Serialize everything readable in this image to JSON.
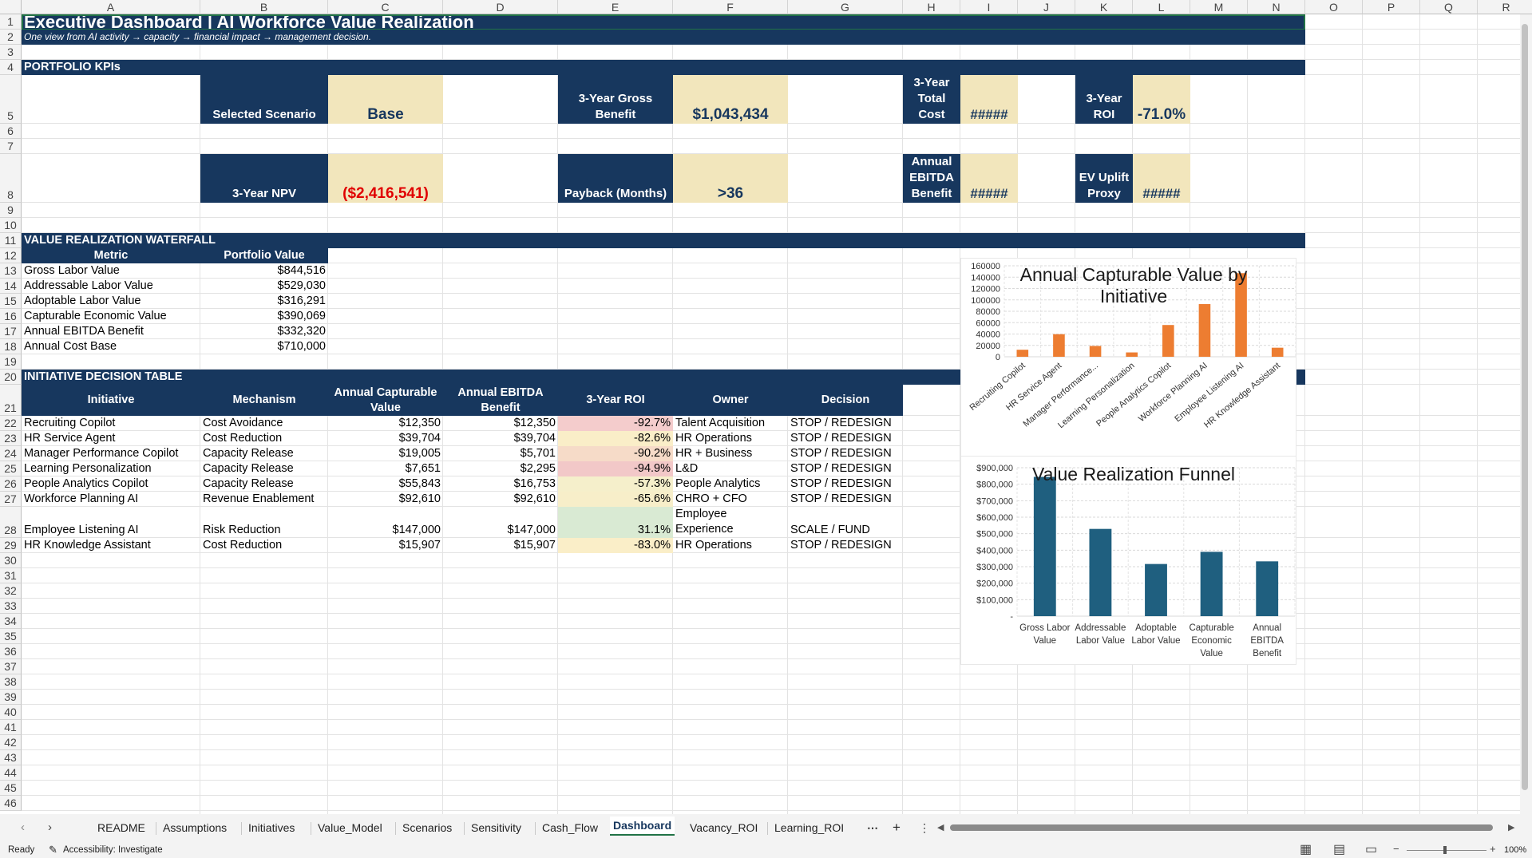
{
  "columns": [
    "A",
    "B",
    "C",
    "D",
    "E",
    "F",
    "G",
    "H",
    "I",
    "J",
    "K",
    "L",
    "M",
    "N",
    "O",
    "P",
    "Q",
    "R"
  ],
  "rows": [
    "1",
    "2",
    "3",
    "4",
    "5",
    "6",
    "7",
    "8",
    "9",
    "10",
    "11",
    "12",
    "13",
    "14",
    "15",
    "16",
    "17",
    "18",
    "19",
    "20",
    "21",
    "22",
    "23",
    "24",
    "25",
    "26",
    "27",
    "28",
    "29",
    "30",
    "31",
    "32",
    "33",
    "34",
    "35",
    "36",
    "37",
    "38",
    "39",
    "40",
    "41",
    "42",
    "43",
    "44",
    "45",
    "46"
  ],
  "title": "Executive Dashboard | AI Workforce Value Realization",
  "subtitle": "One view from AI activity → capacity → financial impact → management decision.",
  "kpi": {
    "section": "PORTFOLIO KPIs",
    "selected_scenario_label": "Selected Scenario",
    "selected_scenario_value": "Base",
    "gross_benefit_label": "3-Year Gross Benefit",
    "gross_benefit_value": "$1,043,434",
    "total_cost_label": "3-Year Total Cost",
    "total_cost_value": "#####",
    "roi_label": "3-Year ROI",
    "roi_value": "-71.0%",
    "npv_label": "3-Year NPV",
    "npv_value": "($2,416,541)",
    "payback_label": "Payback (Months)",
    "payback_value": ">36",
    "ebitda_label": "Annual EBITDA Benefit",
    "ebitda_value": "#####",
    "ev_label": "EV Uplift Proxy",
    "ev_value": "#####"
  },
  "waterfall": {
    "section": "VALUE REALIZATION WATERFALL",
    "headers": [
      "Metric",
      "Portfolio Value"
    ],
    "rows": [
      {
        "metric": "Gross Labor Value",
        "value": "$844,516"
      },
      {
        "metric": "Addressable Labor Value",
        "value": "$529,030"
      },
      {
        "metric": "Adoptable Labor Value",
        "value": "$316,291"
      },
      {
        "metric": "Capturable Economic Value",
        "value": "$390,069"
      },
      {
        "metric": "Annual EBITDA Benefit",
        "value": "$332,320"
      },
      {
        "metric": "Annual Cost Base",
        "value": "$710,000"
      }
    ]
  },
  "decision": {
    "section": "INITIATIVE DECISION TABLE",
    "headers": [
      "Initiative",
      "Mechanism",
      "Annual Capturable Value",
      "Annual EBITDA Benefit",
      "3-Year ROI",
      "Owner",
      "Decision"
    ],
    "rows": [
      {
        "initiative": "Recruiting Copilot",
        "mechanism": "Cost Avoidance",
        "capturable": "$12,350",
        "ebitda": "$12,350",
        "roi": "-92.7%",
        "owner": "Talent Acquisition",
        "owner2": "",
        "decision": "STOP / REDESIGN",
        "roi_color": "#f4cccc"
      },
      {
        "initiative": "HR Service Agent",
        "mechanism": "Cost Reduction",
        "capturable": "$39,704",
        "ebitda": "$39,704",
        "roi": "-82.6%",
        "owner": "HR Operations",
        "owner2": "",
        "decision": "STOP / REDESIGN",
        "roi_color": "#faeec8"
      },
      {
        "initiative": "Manager Performance Copilot",
        "mechanism": "Capacity Release",
        "capturable": "$19,005",
        "ebitda": "$5,701",
        "roi": "-90.2%",
        "owner": "HR + Business",
        "owner2": "",
        "decision": "STOP / REDESIGN",
        "roi_color": "#f6dbc8"
      },
      {
        "initiative": "Learning Personalization",
        "mechanism": "Capacity Release",
        "capturable": "$7,651",
        "ebitda": "$2,295",
        "roi": "-94.9%",
        "owner": "L&D",
        "owner2": "",
        "decision": "STOP / REDESIGN",
        "roi_color": "#f2c8c8"
      },
      {
        "initiative": "People Analytics Copilot",
        "mechanism": "Capacity Release",
        "capturable": "$55,843",
        "ebitda": "$16,753",
        "roi": "-57.3%",
        "owner": "People Analytics",
        "owner2": "",
        "decision": "STOP / REDESIGN",
        "roi_color": "#f5efcb"
      },
      {
        "initiative": "Workforce Planning AI",
        "mechanism": "Revenue Enablement",
        "capturable": "$92,610",
        "ebitda": "$92,610",
        "roi": "-65.6%",
        "owner": "CHRO + CFO",
        "owner2": "",
        "decision": "STOP / REDESIGN",
        "roi_color": "#f7eec9"
      },
      {
        "initiative": "Employee Listening AI",
        "mechanism": "Risk Reduction",
        "capturable": "$147,000",
        "ebitda": "$147,000",
        "roi": "31.1%",
        "owner": "Employee",
        "owner2": "Experience",
        "decision": "SCALE / FUND",
        "roi_color": "#d9ead3"
      },
      {
        "initiative": "HR Knowledge Assistant",
        "mechanism": "Cost Reduction",
        "capturable": "$15,907",
        "ebitda": "$15,907",
        "roi": "-83.0%",
        "owner": "HR Operations",
        "owner2": "",
        "decision": "STOP / REDESIGN",
        "roi_color": "#faeec8"
      }
    ]
  },
  "chart_data": [
    {
      "type": "bar",
      "title": "Annual Capturable Value by Initiative",
      "categories": [
        "Recruiting Copilot",
        "HR Service Agent",
        "Manager Performance...",
        "Learning Personalization",
        "People Analytics Copilot",
        "Workforce Planning AI",
        "Employee Listening AI",
        "HR Knowledge Assistant"
      ],
      "values": [
        12350,
        39704,
        19005,
        7651,
        55843,
        92610,
        147000,
        15907
      ],
      "yticks": [
        "0",
        "20000",
        "40000",
        "60000",
        "80000",
        "100000",
        "120000",
        "140000",
        "160000"
      ],
      "ylim": [
        0,
        160000
      ],
      "grid": true,
      "color": "#ed7d31"
    },
    {
      "type": "bar",
      "title": "Value Realization Funnel",
      "categories": [
        [
          "Gross Labor",
          "Value"
        ],
        [
          "Addressable",
          "Labor Value"
        ],
        [
          "Adoptable",
          "Labor Value"
        ],
        [
          "Capturable",
          "Economic",
          "Value"
        ],
        [
          "Annual",
          "EBITDA",
          "Benefit"
        ]
      ],
      "values": [
        844516,
        529030,
        316291,
        390069,
        332320
      ],
      "yticks": [
        "-",
        "$100,000",
        "$200,000",
        "$300,000",
        "$400,000",
        "$500,000",
        "$600,000",
        "$700,000",
        "$800,000",
        "$900,000"
      ],
      "ylim": [
        0,
        900000
      ],
      "grid": true,
      "color": "#1f5f7f"
    }
  ],
  "tabs": [
    "README",
    "Assumptions",
    "Initiatives",
    "Value_Model",
    "Scenarios",
    "Sensitivity",
    "Cash_Flow",
    "Dashboard",
    "Vacancy_ROI",
    "Learning_ROI"
  ],
  "active_tab": "Dashboard",
  "tab_more": "⋯",
  "tab_add": "+",
  "status": {
    "ready": "Ready",
    "accessibility": "Accessibility: Investigate",
    "zoom": "100%"
  }
}
